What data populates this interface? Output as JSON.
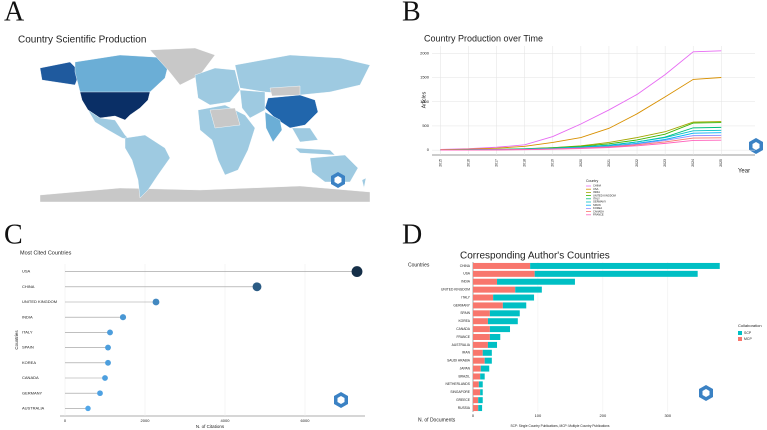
{
  "chart_data": [
    {
      "type": "map",
      "panel": "A",
      "title": "Country Scientific Production"
    },
    {
      "type": "line",
      "panel": "B",
      "title": "Country Production over Time",
      "y_label": "Articles",
      "x_label": "Year",
      "x": [
        2015,
        2016,
        2017,
        2018,
        2019,
        2020,
        2021,
        2022,
        2023,
        2024,
        2025
      ],
      "xlim": [
        2014.7,
        2026.2
      ],
      "xticks": [
        2015,
        2016,
        2017,
        2018,
        2019,
        2020,
        2021,
        2022,
        2023,
        2024,
        2025
      ],
      "ylim": [
        -100,
        2150
      ],
      "yticks": [
        0,
        500,
        1000,
        1500,
        2000
      ],
      "grid": true,
      "legend_title": "Country",
      "series": [
        {
          "name": "CHINA",
          "color": "#e76bf3",
          "values": [
            15,
            30,
            60,
            110,
            280,
            540,
            830,
            1150,
            1560,
            2030,
            2050
          ]
        },
        {
          "name": "USA",
          "color": "#d89000",
          "values": [
            10,
            20,
            40,
            80,
            160,
            260,
            450,
            750,
            1100,
            1460,
            1500
          ]
        },
        {
          "name": "INDIA",
          "color": "#a3a500",
          "values": [
            3,
            6,
            12,
            25,
            50,
            90,
            160,
            260,
            380,
            580,
            590
          ]
        },
        {
          "name": "UNITED KINGDOM",
          "color": "#39b600",
          "values": [
            5,
            10,
            18,
            30,
            50,
            80,
            130,
            210,
            330,
            560,
            570
          ]
        },
        {
          "name": "ITALY",
          "color": "#00bf7d",
          "values": [
            3,
            6,
            10,
            20,
            35,
            60,
            100,
            170,
            270,
            460,
            470
          ]
        },
        {
          "name": "GERMANY",
          "color": "#00bfc4",
          "values": [
            4,
            8,
            14,
            24,
            40,
            65,
            105,
            170,
            260,
            400,
            410
          ]
        },
        {
          "name": "SPAIN",
          "color": "#00b0f6",
          "values": [
            2,
            5,
            9,
            16,
            30,
            50,
            85,
            140,
            220,
            350,
            360
          ]
        },
        {
          "name": "KOREA",
          "color": "#9590ff",
          "values": [
            2,
            4,
            8,
            14,
            26,
            45,
            75,
            125,
            200,
            300,
            305
          ]
        },
        {
          "name": "CANADA",
          "color": "#f8766d",
          "values": [
            2,
            4,
            7,
            13,
            24,
            40,
            65,
            110,
            170,
            250,
            255
          ]
        },
        {
          "name": "FRANCE",
          "color": "#ff62bc",
          "values": [
            1,
            3,
            6,
            11,
            20,
            34,
            55,
            90,
            140,
            200,
            205
          ]
        }
      ]
    },
    {
      "type": "lollipop",
      "panel": "C",
      "title": "Most Cited Countries",
      "y_label": "Countries",
      "x_label": "N. of Citations",
      "categories": [
        "USA",
        "CHINA",
        "UNITED KINGDOM",
        "INDIA",
        "ITALY",
        "SPAIN",
        "KOREA",
        "CANADA",
        "GERMANY",
        "AUSTRALIA"
      ],
      "values": [
        7300,
        4800,
        2275,
        1450,
        1125,
        1075,
        1075,
        1000,
        875,
        575
      ],
      "xlim": [
        0,
        7500
      ],
      "xticks": [
        0,
        2000,
        4000,
        6000
      ],
      "grid": true,
      "color_low": "#56b1f7",
      "color_high": "#132b43"
    },
    {
      "type": "bar",
      "orientation": "horizontal",
      "stacked": true,
      "panel": "D",
      "title": "Corresponding Author's Countries",
      "y_label": "Countries",
      "x_label": "N. of Documents",
      "legend_title": "Collaboration",
      "note": "SCP: Single Country Publications, MCP: Multiple Country Publications",
      "categories": [
        "CHINA",
        "USA",
        "INDIA",
        "UNITED KINGDOM",
        "ITALY",
        "GERMANY",
        "SPAIN",
        "KOREA",
        "CANADA",
        "FRANCE",
        "AUSTRALIA",
        "IRAN",
        "SAUDI ARABIA",
        "JAPAN",
        "BRAZIL",
        "NETHERLANDS",
        "SINGAPORE",
        "GREECE",
        "RUSSIA"
      ],
      "xlim": [
        0,
        385
      ],
      "xticks": [
        0,
        100,
        200,
        300
      ],
      "grid": true,
      "series": [
        {
          "name": "SCP",
          "color": "#00bfc4",
          "values": [
            292,
            251,
            120,
            41,
            63,
            36,
            46,
            46,
            31,
            16,
            14,
            14,
            11,
            13,
            7,
            6,
            4,
            7,
            6
          ]
        },
        {
          "name": "MCP",
          "color": "#f8766d",
          "values": [
            88,
            95,
            37,
            65,
            31,
            46,
            26,
            23,
            26,
            26,
            23,
            15,
            18,
            12,
            11,
            9,
            11,
            8,
            8
          ]
        }
      ]
    }
  ]
}
